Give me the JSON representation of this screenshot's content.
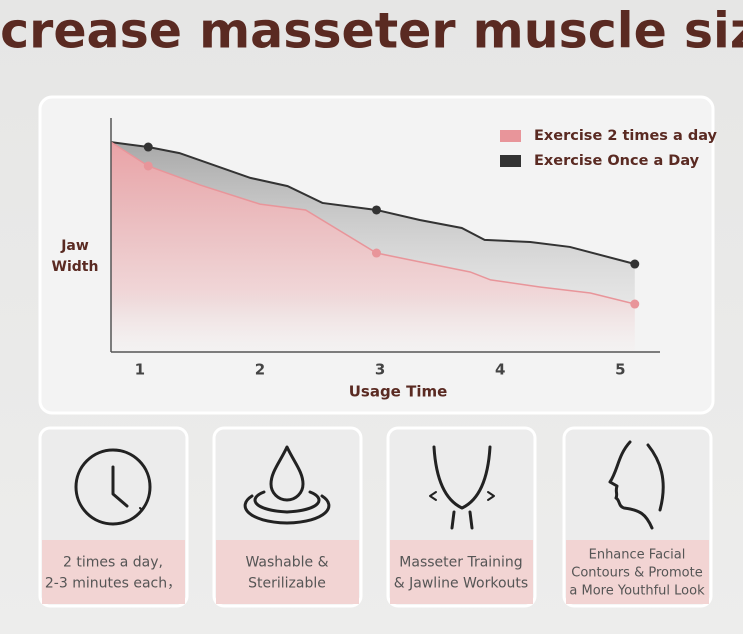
{
  "header": {
    "title": "increase masseter muscle size"
  },
  "chart_data": {
    "type": "line",
    "x_label": "Usage Time",
    "y_label": [
      "Jaw",
      "Width"
    ],
    "xlim": [
      0.76,
      5.33
    ],
    "xticks": [
      1,
      2,
      3,
      4,
      5
    ],
    "ylim": [
      0,
      100
    ],
    "legend": "top-right",
    "series": [
      {
        "name": "Exercise 2 times a day",
        "color": "#e8959a",
        "x": [
          0.76,
          1.07,
          1.5,
          2.0,
          2.38,
          2.97,
          3.33,
          3.75,
          3.92,
          4.33,
          4.75,
          5.12
        ],
        "values": [
          89.7,
          79.5,
          71.4,
          63.2,
          60.7,
          42.3,
          38.5,
          34.2,
          30.8,
          27.8,
          25.2,
          20.5
        ],
        "markers": [
          1,
          5,
          11
        ]
      },
      {
        "name": "Exercise Once a Day",
        "color": "#333333",
        "x": [
          0.76,
          1.07,
          1.33,
          1.92,
          2.23,
          2.52,
          2.97,
          3.33,
          3.68,
          3.87,
          4.25,
          4.58,
          5.12
        ],
        "values": [
          89.7,
          87.6,
          85.0,
          74.4,
          70.9,
          63.7,
          60.7,
          56.4,
          53.0,
          47.9,
          47.0,
          44.9,
          37.6
        ],
        "markers": [
          1,
          6,
          12
        ]
      }
    ]
  },
  "features": [
    {
      "lines": [
        "2 times a day,",
        "2-3 minutes each，"
      ]
    },
    {
      "lines": [
        "Washable &",
        "Sterilizable"
      ]
    },
    {
      "lines": [
        "Masseter Training",
        "& Jawline Workouts"
      ]
    },
    {
      "lines": [
        "Enhance Facial",
        "Contours & Promote",
        "a More Youthful Look"
      ]
    }
  ]
}
